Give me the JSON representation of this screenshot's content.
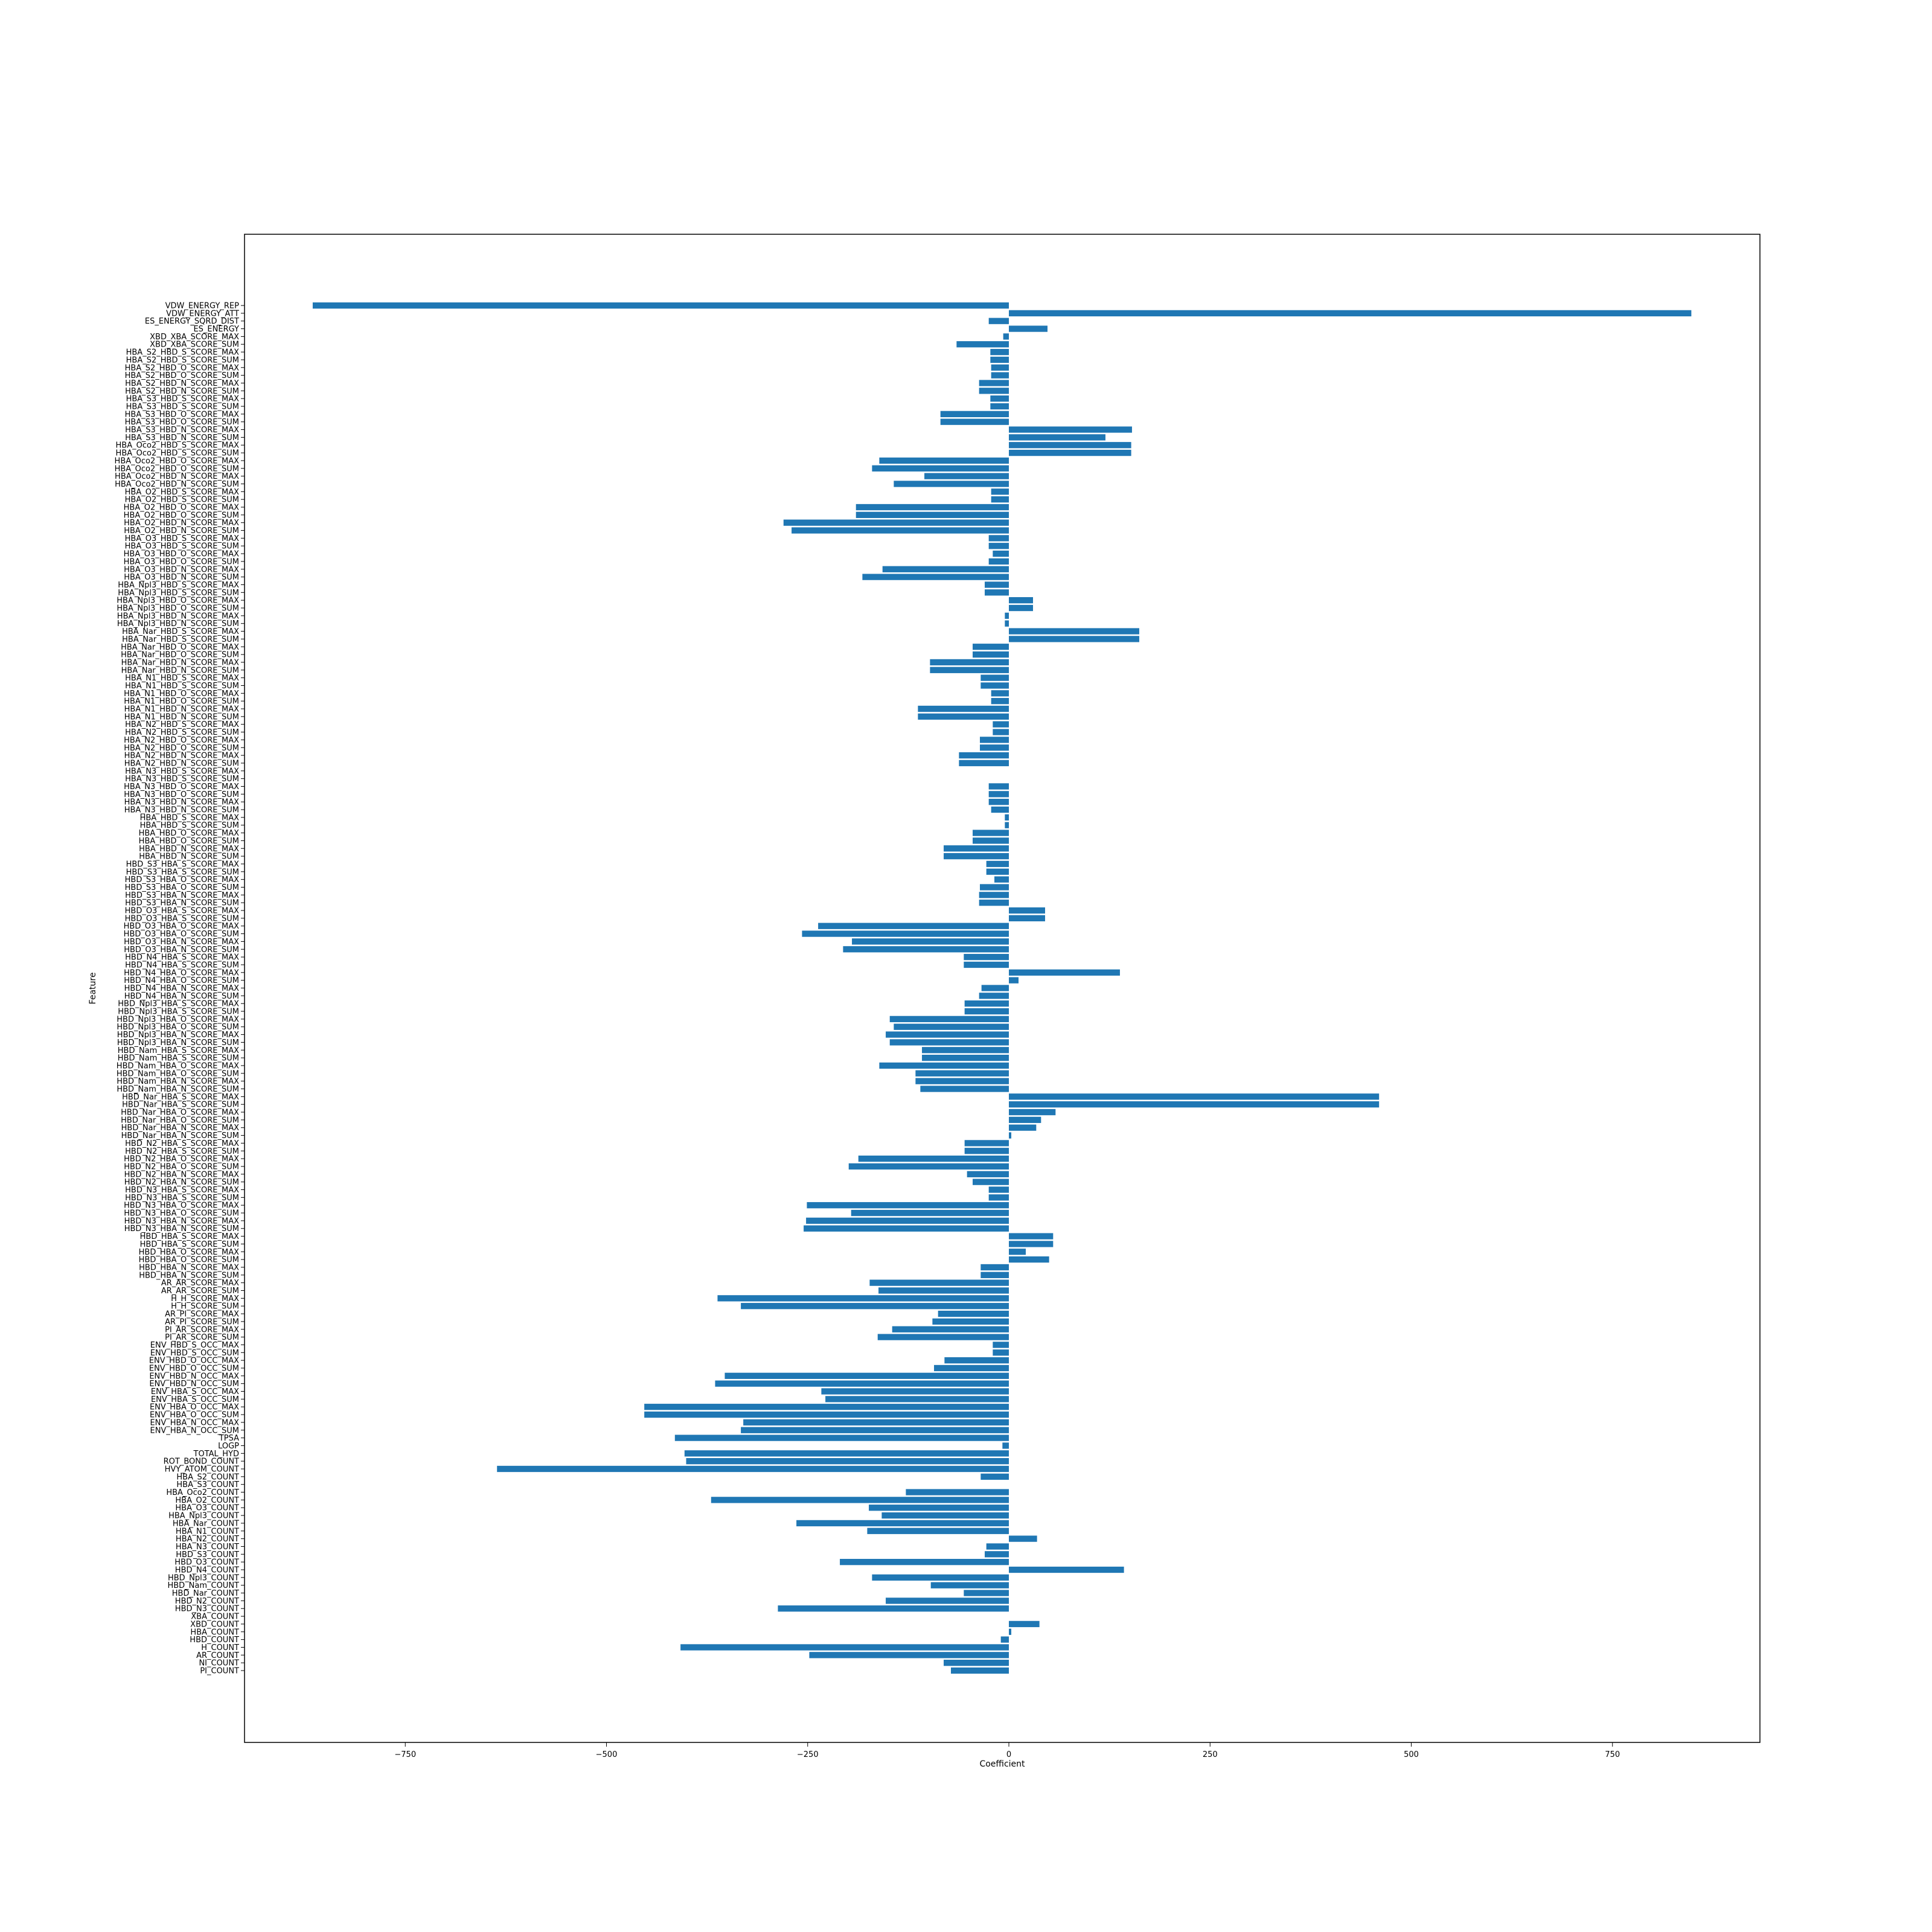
{
  "chart_data": {
    "type": "bar",
    "orientation": "horizontal",
    "title": "",
    "xlabel": "Coefficient",
    "ylabel": "Feature",
    "xlim": [
      -950,
      1000
    ],
    "xticks": [
      -750,
      -500,
      -250,
      0,
      250,
      500,
      750
    ],
    "xtick_labels": [
      "−750",
      "−500",
      "−250",
      "0",
      "250",
      "500",
      "750"
    ],
    "grid": false,
    "bar_color": "#1f77b4",
    "categories": [
      "VDW_ENERGY_REP",
      "VDW_ENERGY_ATT",
      "ES_ENERGY_SQRD_DIST",
      "ES_ENERGY",
      "XBD_XBA_SCORE_MAX",
      "XBD_XBA_SCORE_SUM",
      "HBA_S2_HBD_S_SCORE_MAX",
      "HBA_S2_HBD_S_SCORE_SUM",
      "HBA_S2_HBD_O_SCORE_MAX",
      "HBA_S2_HBD_O_SCORE_SUM",
      "HBA_S2_HBD_N_SCORE_MAX",
      "HBA_S2_HBD_N_SCORE_SUM",
      "HBA_S3_HBD_S_SCORE_MAX",
      "HBA_S3_HBD_S_SCORE_SUM",
      "HBA_S3_HBD_O_SCORE_MAX",
      "HBA_S3_HBD_O_SCORE_SUM",
      "HBA_S3_HBD_N_SCORE_MAX",
      "HBA_S3_HBD_N_SCORE_SUM",
      "HBA_Oco2_HBD_S_SCORE_MAX",
      "HBA_Oco2_HBD_S_SCORE_SUM",
      "HBA_Oco2_HBD_O_SCORE_MAX",
      "HBA_Oco2_HBD_O_SCORE_SUM",
      "HBA_Oco2_HBD_N_SCORE_MAX",
      "HBA_Oco2_HBD_N_SCORE_SUM",
      "HBA_O2_HBD_S_SCORE_MAX",
      "HBA_O2_HBD_S_SCORE_SUM",
      "HBA_O2_HBD_O_SCORE_MAX",
      "HBA_O2_HBD_O_SCORE_SUM",
      "HBA_O2_HBD_N_SCORE_MAX",
      "HBA_O2_HBD_N_SCORE_SUM",
      "HBA_O3_HBD_S_SCORE_MAX",
      "HBA_O3_HBD_S_SCORE_SUM",
      "HBA_O3_HBD_O_SCORE_MAX",
      "HBA_O3_HBD_O_SCORE_SUM",
      "HBA_O3_HBD_N_SCORE_MAX",
      "HBA_O3_HBD_N_SCORE_SUM",
      "HBA_Npl3_HBD_S_SCORE_MAX",
      "HBA_Npl3_HBD_S_SCORE_SUM",
      "HBA_Npl3_HBD_O_SCORE_MAX",
      "HBA_Npl3_HBD_O_SCORE_SUM",
      "HBA_Npl3_HBD_N_SCORE_MAX",
      "HBA_Npl3_HBD_N_SCORE_SUM",
      "HBA_Nar_HBD_S_SCORE_MAX",
      "HBA_Nar_HBD_S_SCORE_SUM",
      "HBA_Nar_HBD_O_SCORE_MAX",
      "HBA_Nar_HBD_O_SCORE_SUM",
      "HBA_Nar_HBD_N_SCORE_MAX",
      "HBA_Nar_HBD_N_SCORE_SUM",
      "HBA_N1_HBD_S_SCORE_MAX",
      "HBA_N1_HBD_S_SCORE_SUM",
      "HBA_N1_HBD_O_SCORE_MAX",
      "HBA_N1_HBD_O_SCORE_SUM",
      "HBA_N1_HBD_N_SCORE_MAX",
      "HBA_N1_HBD_N_SCORE_SUM",
      "HBA_N2_HBD_S_SCORE_MAX",
      "HBA_N2_HBD_S_SCORE_SUM",
      "HBA_N2_HBD_O_SCORE_MAX",
      "HBA_N2_HBD_O_SCORE_SUM",
      "HBA_N2_HBD_N_SCORE_MAX",
      "HBA_N2_HBD_N_SCORE_SUM",
      "HBA_N3_HBD_S_SCORE_MAX",
      "HBA_N3_HBD_S_SCORE_SUM",
      "HBA_N3_HBD_O_SCORE_MAX",
      "HBA_N3_HBD_O_SCORE_SUM",
      "HBA_N3_HBD_N_SCORE_MAX",
      "HBA_N3_HBD_N_SCORE_SUM",
      "HBA_HBD_S_SCORE_MAX",
      "HBA_HBD_S_SCORE_SUM",
      "HBA_HBD_O_SCORE_MAX",
      "HBA_HBD_O_SCORE_SUM",
      "HBA_HBD_N_SCORE_MAX",
      "HBA_HBD_N_SCORE_SUM",
      "HBD_S3_HBA_S_SCORE_MAX",
      "HBD_S3_HBA_S_SCORE_SUM",
      "HBD_S3_HBA_O_SCORE_MAX",
      "HBD_S3_HBA_O_SCORE_SUM",
      "HBD_S3_HBA_N_SCORE_MAX",
      "HBD_S3_HBA_N_SCORE_SUM",
      "HBD_O3_HBA_S_SCORE_MAX",
      "HBD_O3_HBA_S_SCORE_SUM",
      "HBD_O3_HBA_O_SCORE_MAX",
      "HBD_O3_HBA_O_SCORE_SUM",
      "HBD_O3_HBA_N_SCORE_MAX",
      "HBD_O3_HBA_N_SCORE_SUM",
      "HBD_N4_HBA_S_SCORE_MAX",
      "HBD_N4_HBA_S_SCORE_SUM",
      "HBD_N4_HBA_O_SCORE_MAX",
      "HBD_N4_HBA_O_SCORE_SUM",
      "HBD_N4_HBA_N_SCORE_MAX",
      "HBD_N4_HBA_N_SCORE_SUM",
      "HBD_Npl3_HBA_S_SCORE_MAX",
      "HBD_Npl3_HBA_S_SCORE_SUM",
      "HBD_Npl3_HBA_O_SCORE_MAX",
      "HBD_Npl3_HBA_O_SCORE_SUM",
      "HBD_Npl3_HBA_N_SCORE_MAX",
      "HBD_Npl3_HBA_N_SCORE_SUM",
      "HBD_Nam_HBA_S_SCORE_MAX",
      "HBD_Nam_HBA_S_SCORE_SUM",
      "HBD_Nam_HBA_O_SCORE_MAX",
      "HBD_Nam_HBA_O_SCORE_SUM",
      "HBD_Nam_HBA_N_SCORE_MAX",
      "HBD_Nam_HBA_N_SCORE_SUM",
      "HBD_Nar_HBA_S_SCORE_MAX",
      "HBD_Nar_HBA_S_SCORE_SUM",
      "HBD_Nar_HBA_O_SCORE_MAX",
      "HBD_Nar_HBA_O_SCORE_SUM",
      "HBD_Nar_HBA_N_SCORE_MAX",
      "HBD_Nar_HBA_N_SCORE_SUM",
      "HBD_N2_HBA_S_SCORE_MAX",
      "HBD_N2_HBA_S_SCORE_SUM",
      "HBD_N2_HBA_O_SCORE_MAX",
      "HBD_N2_HBA_O_SCORE_SUM",
      "HBD_N2_HBA_N_SCORE_MAX",
      "HBD_N2_HBA_N_SCORE_SUM",
      "HBD_N3_HBA_S_SCORE_MAX",
      "HBD_N3_HBA_S_SCORE_SUM",
      "HBD_N3_HBA_O_SCORE_MAX",
      "HBD_N3_HBA_O_SCORE_SUM",
      "HBD_N3_HBA_N_SCORE_MAX",
      "HBD_N3_HBA_N_SCORE_SUM",
      "HBD_HBA_S_SCORE_MAX",
      "HBD_HBA_S_SCORE_SUM",
      "HBD_HBA_O_SCORE_MAX",
      "HBD_HBA_O_SCORE_SUM",
      "HBD_HBA_N_SCORE_MAX",
      "HBD_HBA_N_SCORE_SUM",
      "AR_AR_SCORE_MAX",
      "AR_AR_SCORE_SUM",
      "H_H_SCORE_MAX",
      "H_H_SCORE_SUM",
      "AR_PI_SCORE_MAX",
      "AR_PI_SCORE_SUM",
      "PI_AR_SCORE_MAX",
      "PI_AR_SCORE_SUM",
      "ENV_HBD_S_OCC_MAX",
      "ENV_HBD_S_OCC_SUM",
      "ENV_HBD_O_OCC_MAX",
      "ENV_HBD_O_OCC_SUM",
      "ENV_HBD_N_OCC_MAX",
      "ENV_HBD_N_OCC_SUM",
      "ENV_HBA_S_OCC_MAX",
      "ENV_HBA_S_OCC_SUM",
      "ENV_HBA_O_OCC_MAX",
      "ENV_HBA_O_OCC_SUM",
      "ENV_HBA_N_OCC_MAX",
      "ENV_HBA_N_OCC_SUM",
      "TPSA",
      "LOGP",
      "TOTAL_HYD",
      "ROT_BOND_COUNT",
      "HVY_ATOM_COUNT",
      "HBA_S2_COUNT",
      "HBA_S3_COUNT",
      "HBA_Oco2_COUNT",
      "HBA_O2_COUNT",
      "HBA_O3_COUNT",
      "HBA_Npl3_COUNT",
      "HBA_Nar_COUNT",
      "HBA_N1_COUNT",
      "HBA_N2_COUNT",
      "HBA_N3_COUNT",
      "HBD_S3_COUNT",
      "HBD_O3_COUNT",
      "HBD_N4_COUNT",
      "HBD_Npl3_COUNT",
      "HBD_Nam_COUNT",
      "HBD_Nar_COUNT",
      "HBD_N2_COUNT",
      "HBD_N3_COUNT",
      "XBA_COUNT",
      "XBD_COUNT",
      "HBA_COUNT",
      "HBD_COUNT",
      "H_COUNT",
      "AR_COUNT",
      "NI_COUNT",
      "PI_COUNT"
    ],
    "values": [
      -865,
      848,
      -25,
      48,
      -7,
      -65,
      -23,
      -23,
      -22,
      -22,
      -37,
      -37,
      -23,
      -23,
      -85,
      -85,
      153,
      120,
      152,
      152,
      -161,
      -170,
      -105,
      -143,
      -22,
      -22,
      -190,
      -190,
      -280,
      -270,
      -25,
      -25,
      -20,
      -25,
      -157,
      -182,
      -30,
      -30,
      30,
      30,
      -5,
      -5,
      162,
      162,
      -45,
      -45,
      -98,
      -98,
      -35,
      -35,
      -22,
      -22,
      -113,
      -113,
      -20,
      -20,
      -36,
      -36,
      -62,
      -62,
      0,
      0,
      -25,
      -25,
      -25,
      -22,
      -5,
      -5,
      -45,
      -45,
      -81,
      -81,
      -28,
      -28,
      -18,
      -36,
      -37,
      -37,
      45,
      45,
      -237,
      -257,
      -195,
      -206,
      -56,
      -56,
      138,
      12,
      -34,
      -37,
      -55,
      -55,
      -148,
      -143,
      -153,
      -148,
      -108,
      -108,
      -161,
      -116,
      -116,
      -110,
      460,
      460,
      58,
      40,
      34,
      3,
      -55,
      -55,
      -187,
      -199,
      -52,
      -45,
      -25,
      -25,
      -251,
      -196,
      -252,
      -255,
      55,
      55,
      21,
      50,
      -35,
      -35,
      -173,
      -162,
      -362,
      -333,
      -88,
      -95,
      -145,
      -163,
      -20,
      -20,
      -80,
      -93,
      -353,
      -365,
      -233,
      -228,
      -453,
      -453,
      -330,
      -333,
      -415,
      -8,
      -403,
      -401,
      -636,
      -35,
      0,
      -128,
      -370,
      -174,
      -158,
      -264,
      -176,
      35,
      -28,
      -30,
      -210,
      143,
      -170,
      -97,
      -56,
      -153,
      -287,
      0,
      38,
      3,
      -10,
      -408,
      -248,
      -81,
      -72
    ]
  }
}
